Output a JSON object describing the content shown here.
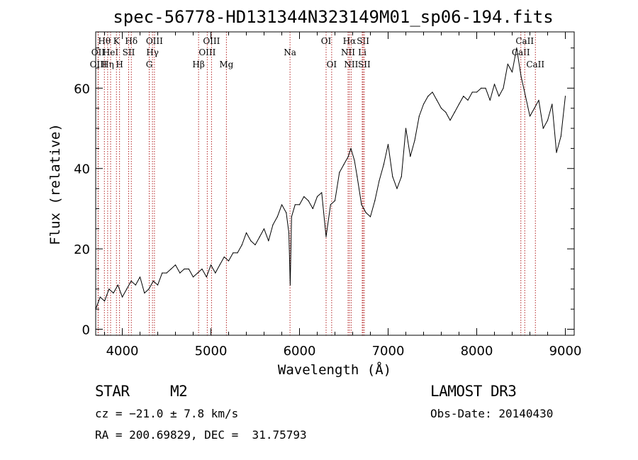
{
  "chart_data": {
    "type": "line",
    "title": "spec-56778-HD131344N323149M01_sp06-194.fits",
    "xlabel": "Wavelength (Å)",
    "ylabel": "Flux (relative)",
    "xlim": [
      3700,
      9100
    ],
    "ylim": [
      -1.5,
      74
    ],
    "xticks": [
      4000,
      5000,
      6000,
      7000,
      8000,
      9000
    ],
    "yticks": [
      0,
      20,
      40,
      60
    ],
    "grid": false,
    "series": [
      {
        "name": "flux",
        "x": [
          3700,
          3750,
          3800,
          3850,
          3900,
          3950,
          4000,
          4050,
          4100,
          4150,
          4200,
          4250,
          4300,
          4350,
          4400,
          4450,
          4500,
          4550,
          4600,
          4650,
          4700,
          4750,
          4800,
          4850,
          4900,
          4950,
          5000,
          5050,
          5100,
          5150,
          5200,
          5250,
          5300,
          5350,
          5400,
          5450,
          5500,
          5550,
          5600,
          5650,
          5700,
          5750,
          5800,
          5850,
          5880,
          5895,
          5910,
          5950,
          6000,
          6050,
          6100,
          6150,
          6200,
          6250,
          6300,
          6350,
          6400,
          6450,
          6500,
          6550,
          6580,
          6620,
          6650,
          6700,
          6750,
          6800,
          6850,
          6900,
          6950,
          7000,
          7050,
          7100,
          7150,
          7200,
          7250,
          7300,
          7350,
          7400,
          7450,
          7500,
          7550,
          7600,
          7650,
          7700,
          7750,
          7800,
          7850,
          7900,
          7950,
          8000,
          8050,
          8100,
          8150,
          8200,
          8250,
          8300,
          8350,
          8400,
          8450,
          8500,
          8550,
          8600,
          8650,
          8700,
          8750,
          8800,
          8850,
          8900,
          8950,
          9000
        ],
        "y": [
          5,
          8,
          7,
          10,
          9,
          11,
          8,
          10,
          12,
          11,
          13,
          9,
          10,
          12,
          11,
          14,
          14,
          15,
          16,
          14,
          15,
          15,
          13,
          14,
          15,
          13,
          16,
          14,
          16,
          18,
          17,
          19,
          19,
          21,
          24,
          22,
          21,
          23,
          25,
          22,
          26,
          28,
          31,
          29,
          24,
          11,
          28,
          31,
          31,
          33,
          32,
          30,
          33,
          34,
          23,
          31,
          32,
          39,
          41,
          43,
          45,
          42,
          38,
          31,
          29,
          28,
          32,
          37,
          41,
          46,
          38,
          35,
          38,
          50,
          43,
          47,
          53,
          56,
          58,
          59,
          57,
          55,
          54,
          52,
          54,
          56,
          58,
          57,
          59,
          59,
          60,
          60,
          57,
          61,
          58,
          60,
          66,
          64,
          70,
          63,
          58,
          53,
          55,
          57,
          50,
          52,
          56,
          44,
          48,
          58
        ]
      }
    ],
    "lines": [
      {
        "wavelength": 3727,
        "label": "OII",
        "row": 2
      },
      {
        "wavelength": 3729,
        "label": "OIII",
        "row": 3
      },
      {
        "wavelength": 3798,
        "label": "Hθ",
        "row": 1
      },
      {
        "wavelength": 3835,
        "label": "Hη",
        "row": 3
      },
      {
        "wavelength": 3868,
        "label": "HeI",
        "row": 2
      },
      {
        "wavelength": 3934,
        "label": "K",
        "row": 1
      },
      {
        "wavelength": 3969,
        "label": "H",
        "row": 3
      },
      {
        "wavelength": 4072,
        "label": "SII",
        "row": 2
      },
      {
        "wavelength": 4102,
        "label": "Hδ",
        "row": 1
      },
      {
        "wavelength": 4304,
        "label": "G",
        "row": 3
      },
      {
        "wavelength": 4341,
        "label": "Hγ",
        "row": 2
      },
      {
        "wavelength": 4363,
        "label": "OIII",
        "row": 1
      },
      {
        "wavelength": 4861,
        "label": "Hβ",
        "row": 3
      },
      {
        "wavelength": 4959,
        "label": "OIII",
        "row": 2
      },
      {
        "wavelength": 5007,
        "label": "OIII",
        "row": 1
      },
      {
        "wavelength": 5175,
        "label": "Mg",
        "row": 3
      },
      {
        "wavelength": 5893,
        "label": "Na",
        "row": 2
      },
      {
        "wavelength": 6300,
        "label": "OI",
        "row": 1
      },
      {
        "wavelength": 6363,
        "label": "OI",
        "row": 3
      },
      {
        "wavelength": 6548,
        "label": "NII",
        "row": 2
      },
      {
        "wavelength": 6563,
        "label": "Hα",
        "row": 1
      },
      {
        "wavelength": 6583,
        "label": "NII",
        "row": 3
      },
      {
        "wavelength": 6708,
        "label": "Li",
        "row": 2
      },
      {
        "wavelength": 6717,
        "label": "SII",
        "row": 1
      },
      {
        "wavelength": 6731,
        "label": "SII",
        "row": 3
      },
      {
        "wavelength": 8498,
        "label": "CaII",
        "row": 2
      },
      {
        "wavelength": 8542,
        "label": "CaII",
        "row": 1
      },
      {
        "wavelength": 8662,
        "label": "CaII",
        "row": 3
      }
    ],
    "line_color": "#b22222",
    "series_color": "#000000"
  },
  "info": {
    "object_class": "STAR",
    "subclass": "M2",
    "cz": "cz = −21.0 ± 7.8 km/s",
    "coords": "RA = 200.69829, DEC =  31.75793",
    "survey": "LAMOST DR3",
    "obs_date": "Obs-Date: 20140430"
  }
}
